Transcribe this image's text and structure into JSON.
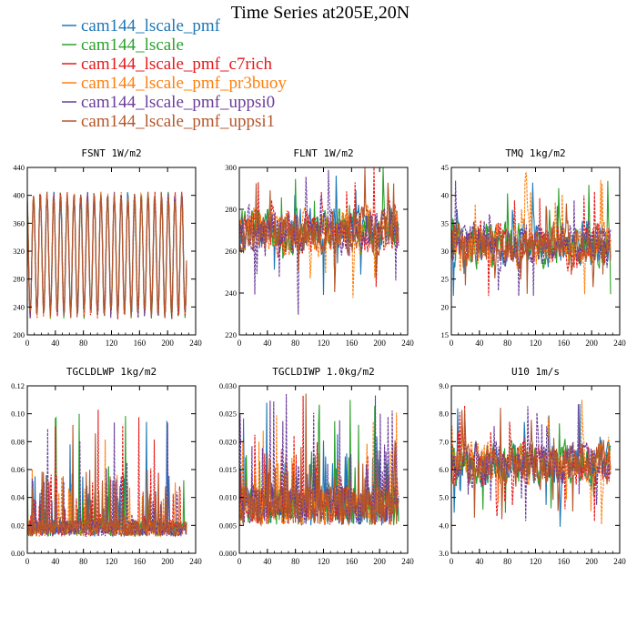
{
  "figure": {
    "title": "Time Series at205E,20N"
  },
  "legend": [
    {
      "label": "cam144_lscale_pmf",
      "color": "#1f77b4"
    },
    {
      "label": "cam144_lscale",
      "color": "#2ca02c"
    },
    {
      "label": "cam144_lscale_pmf_c7rich",
      "color": "#e41a1c"
    },
    {
      "label": "cam144_lscale_pmf_pr3buoy",
      "color": "#ff7f0e"
    },
    {
      "label": "cam144_lscale_pmf_uppsi0",
      "color": "#6a3d9a"
    },
    {
      "label": "cam144_lscale_pmf_uppsi1",
      "color": "#b5562a"
    }
  ],
  "chart_data": [
    {
      "type": "line",
      "title": "FSNT   1W/m2",
      "xlim": [
        0,
        240
      ],
      "ylim": [
        200,
        440
      ],
      "xticks": [
        0,
        40,
        80,
        120,
        160,
        200,
        240
      ],
      "yticks": [
        200,
        240,
        280,
        320,
        360,
        400,
        440
      ],
      "yticklabels": [
        "200",
        "240",
        "280",
        "320",
        "360",
        "400",
        "440"
      ],
      "pattern": "diurnal",
      "n": 228,
      "mean": 315,
      "amp": 85,
      "period": 9.6,
      "noise": 8
    },
    {
      "type": "line",
      "title": "FLNT   1W/m2",
      "xlim": [
        0,
        240
      ],
      "ylim": [
        220,
        300
      ],
      "xticks": [
        0,
        40,
        80,
        120,
        160,
        200,
        240
      ],
      "yticks": [
        220,
        240,
        260,
        280,
        300
      ],
      "yticklabels": [
        "220",
        "240",
        "260",
        "280",
        "300"
      ],
      "pattern": "noisy",
      "n": 228,
      "mean": 270,
      "amp": 14,
      "min": 222,
      "max": 300
    },
    {
      "type": "line",
      "title": "TMQ   1kg/m2",
      "xlim": [
        0,
        240
      ],
      "ylim": [
        15,
        45
      ],
      "xticks": [
        0,
        40,
        80,
        120,
        160,
        200,
        240
      ],
      "yticks": [
        15,
        20,
        25,
        30,
        35,
        40,
        45
      ],
      "yticklabels": [
        "15",
        "20",
        "25",
        "30",
        "35",
        "40",
        "45"
      ],
      "pattern": "noisy",
      "n": 228,
      "mean": 31,
      "amp": 5,
      "min": 22,
      "max": 44
    },
    {
      "type": "line",
      "title": "TGCLDLWP   1kg/m2",
      "xlim": [
        0,
        240
      ],
      "ylim": [
        0,
        0.12
      ],
      "xticks": [
        0,
        40,
        80,
        120,
        160,
        200,
        240
      ],
      "yticks": [
        0,
        0.02,
        0.04,
        0.06,
        0.08,
        0.1,
        0.12
      ],
      "yticklabels": [
        "0.00",
        "0.02",
        "0.04",
        "0.06",
        "0.08",
        "0.10",
        "0.12"
      ],
      "pattern": "spiky",
      "n": 228,
      "base": 0.012,
      "spread": 0.012,
      "min": 0.0,
      "max": 0.104
    },
    {
      "type": "line",
      "title": "TGCLDIWP   1.0kg/m2",
      "xlim": [
        0,
        240
      ],
      "ylim": [
        0,
        0.03
      ],
      "xticks": [
        0,
        40,
        80,
        120,
        160,
        200,
        240
      ],
      "yticks": [
        0,
        0.005,
        0.01,
        0.015,
        0.02,
        0.025,
        0.03
      ],
      "yticklabels": [
        "0.000",
        "0.005",
        "0.010",
        "0.015",
        "0.020",
        "0.025",
        "0.030"
      ],
      "pattern": "spiky",
      "n": 228,
      "base": 0.005,
      "spread": 0.007,
      "min": 0.0,
      "max": 0.0295
    },
    {
      "type": "line",
      "title": "U10   1m/s",
      "xlim": [
        0,
        240
      ],
      "ylim": [
        3,
        9
      ],
      "xticks": [
        0,
        40,
        80,
        120,
        160,
        200,
        240
      ],
      "yticks": [
        3,
        4,
        5,
        6,
        7,
        8,
        9
      ],
      "yticklabels": [
        "3.0",
        "4.0",
        "5.0",
        "6.0",
        "7.0",
        "8.0",
        "9.0"
      ],
      "pattern": "noisy",
      "n": 228,
      "mean": 6.2,
      "amp": 1.0,
      "min": 3.9,
      "max": 8.8
    }
  ]
}
